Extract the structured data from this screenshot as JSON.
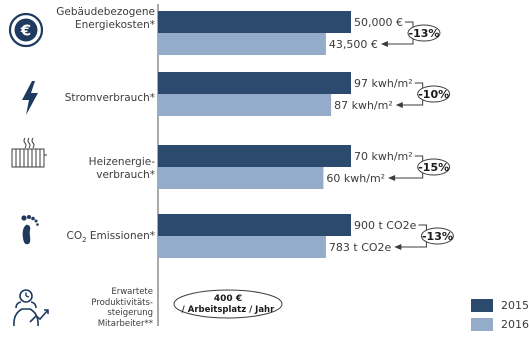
{
  "chart_data": {
    "type": "bar",
    "orientation": "horizontal",
    "categories": [
      "Gebäudebezogene Energiekosten*",
      "Stromverbrauch*",
      "Heizenergie-verbrauch*",
      "CO2 Emissionen*",
      "Erwartete Produktivitäts-steigerung Mitarbeiter**"
    ],
    "series": [
      {
        "name": "2015",
        "values": [
          50000,
          97,
          70,
          900,
          null
        ],
        "labels": [
          "50,000 €",
          "97 kwh/m²",
          "70 kwh/m²",
          "900 t CO2e",
          ""
        ]
      },
      {
        "name": "2016",
        "values": [
          43500,
          87,
          60,
          783,
          null
        ],
        "labels": [
          "43,500 €",
          "87 kwh/m²",
          "60 kwh/m²",
          "783 t CO2e",
          ""
        ]
      }
    ],
    "changes": [
      "-13%",
      "-10%",
      "-15%",
      "-13%"
    ],
    "productivity_callout": [
      "400 €",
      "/ Arbeitsplatz / Jahr"
    ],
    "legend_position": "bottom-right",
    "colors": {
      "2015": "#2c4a6e",
      "2016": "#94abc9"
    }
  },
  "labels": {
    "cat1": [
      "Gebäudebezogene",
      "Energiekosten*"
    ],
    "cat2": "Stromverbrauch*",
    "cat3": [
      "Heizenergie-",
      "verbrauch*"
    ],
    "cat4_pre": "CO",
    "cat4_sub": "2",
    "cat4_post": " Emissionen*",
    "cat5": [
      "Erwartete",
      "Produktivitäts-",
      "steigerung",
      "Mitarbeiter**"
    ]
  },
  "icons": [
    "euro-coin-icon",
    "lightning-bolt-icon",
    "radiator-icon",
    "footprint-icon",
    "productivity-person-icon"
  ]
}
